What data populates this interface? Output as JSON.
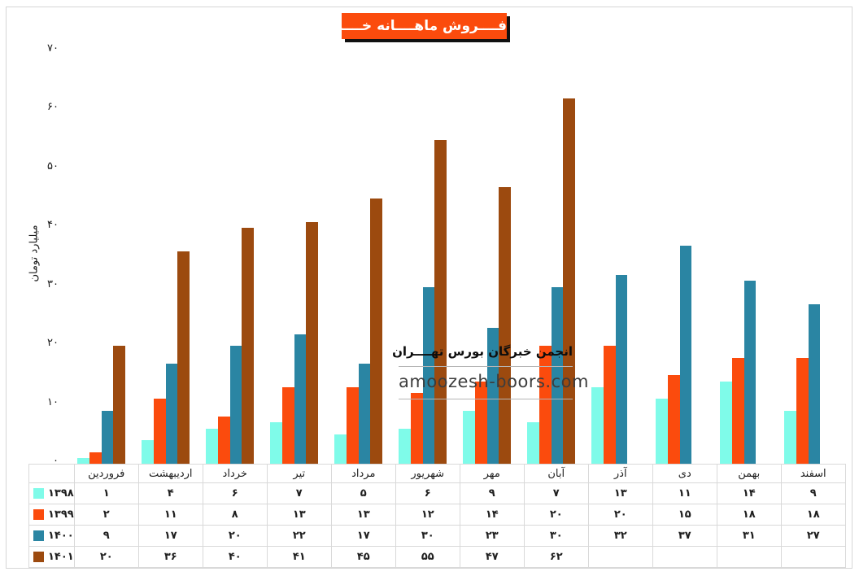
{
  "title": "فــــروش ماهــــانه خــــزر",
  "watermark": {
    "org": "انجمن خبرگان بورس تهــــران",
    "site": "amoozesh-boors.com"
  },
  "colors": {
    "title_bg": "#FB4B0D",
    "title_text": "#FFFFFF",
    "title_shadow": "#111111",
    "series_1398": "#7FFBE9",
    "series_1399": "#FB4B0D",
    "series_1400": "#2A85A3",
    "series_1401": "#9C4A0F",
    "table_border": "#D9D9D9"
  },
  "chart_data": {
    "type": "bar",
    "title": "فــــروش ماهــــانه خــــزر",
    "xlabel": "",
    "ylabel": "میلیارد تومان",
    "ylim": [
      0,
      70
    ],
    "grid": false,
    "legend_position": "table-first-column",
    "categories": [
      "فروردین",
      "اردیبهشت",
      "خرداد",
      "تیر",
      "مرداد",
      "شهریور",
      "مهر",
      "آبان",
      "آذر",
      "دی",
      "بهمن",
      "اسفند"
    ],
    "y_ticks": [
      {
        "label": "۰",
        "value": 0
      },
      {
        "label": "۱۰",
        "value": 10
      },
      {
        "label": "۲۰",
        "value": 20
      },
      {
        "label": "۳۰",
        "value": 30
      },
      {
        "label": "۴۰",
        "value": 40
      },
      {
        "label": "۵۰",
        "value": 50
      },
      {
        "label": "۶۰",
        "value": 60
      },
      {
        "label": "۷۰",
        "value": 70
      }
    ],
    "series": [
      {
        "name": "۱۳۹۸",
        "color": "#7FFBE9",
        "values": [
          1,
          4,
          6,
          7,
          5,
          6,
          9,
          7,
          13,
          11,
          14,
          9
        ],
        "values_fa": [
          "۱",
          "۴",
          "۶",
          "۷",
          "۵",
          "۶",
          "۹",
          "۷",
          "۱۳",
          "۱۱",
          "۱۴",
          "۹"
        ]
      },
      {
        "name": "۱۳۹۹",
        "color": "#FB4B0D",
        "values": [
          2,
          11,
          8,
          13,
          13,
          12,
          14,
          20,
          20,
          15,
          18,
          18
        ],
        "values_fa": [
          "۲",
          "۱۱",
          "۸",
          "۱۳",
          "۱۳",
          "۱۲",
          "۱۴",
          "۲۰",
          "۲۰",
          "۱۵",
          "۱۸",
          "۱۸"
        ]
      },
      {
        "name": "۱۴۰۰",
        "color": "#2A85A3",
        "values": [
          9,
          17,
          20,
          22,
          17,
          30,
          23,
          30,
          32,
          37,
          31,
          27
        ],
        "values_fa": [
          "۹",
          "۱۷",
          "۲۰",
          "۲۲",
          "۱۷",
          "۳۰",
          "۲۳",
          "۳۰",
          "۳۲",
          "۳۷",
          "۳۱",
          "۲۷"
        ]
      },
      {
        "name": "۱۴۰۱",
        "color": "#9C4A0F",
        "values": [
          20,
          36,
          40,
          41,
          45,
          55,
          47,
          62,
          null,
          null,
          null,
          null
        ],
        "values_fa": [
          "۲۰",
          "۳۶",
          "۴۰",
          "۴۱",
          "۴۵",
          "۵۵",
          "۴۷",
          "۶۲",
          "",
          "",
          "",
          ""
        ]
      }
    ]
  }
}
